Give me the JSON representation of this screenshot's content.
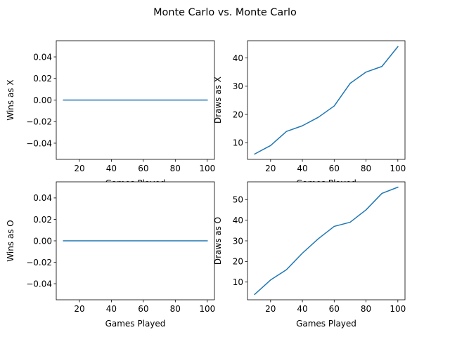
{
  "figure": {
    "title": "Monte Carlo vs. Monte Carlo"
  },
  "chart_data": [
    {
      "type": "line",
      "xlabel": "Games Played",
      "ylabel": "Wins as X",
      "xlim": [
        5.5,
        104.5
      ],
      "ylim": [
        -0.055,
        0.055
      ],
      "xticks": [
        20,
        40,
        60,
        80,
        100
      ],
      "yticks": [
        -0.04,
        -0.02,
        0.0,
        0.02,
        0.04
      ],
      "ytick_labels": [
        "−0.04",
        "−0.02",
        "0.00",
        "0.02",
        "0.04"
      ],
      "x": [
        10,
        20,
        30,
        40,
        50,
        60,
        70,
        80,
        90,
        100
      ],
      "y": [
        0,
        0,
        0,
        0,
        0,
        0,
        0,
        0,
        0,
        0
      ],
      "color": "#1f77b4"
    },
    {
      "type": "line",
      "xlabel": "Games Played",
      "ylabel": "Draws as X",
      "xlim": [
        5.5,
        104.5
      ],
      "ylim": [
        4.1,
        46.1
      ],
      "xticks": [
        20,
        40,
        60,
        80,
        100
      ],
      "yticks": [
        10,
        20,
        30,
        40
      ],
      "ytick_labels": [
        "10",
        "20",
        "30",
        "40"
      ],
      "x": [
        10,
        20,
        30,
        40,
        50,
        60,
        70,
        80,
        90,
        100
      ],
      "y": [
        6,
        9,
        14,
        16,
        19,
        23,
        31,
        35,
        37,
        44
      ],
      "color": "#1f77b4"
    },
    {
      "type": "line",
      "xlabel": "Games Played",
      "ylabel": "Wins as O",
      "xlim": [
        5.5,
        104.5
      ],
      "ylim": [
        -0.055,
        0.055
      ],
      "xticks": [
        20,
        40,
        60,
        80,
        100
      ],
      "yticks": [
        -0.04,
        -0.02,
        0.0,
        0.02,
        0.04
      ],
      "ytick_labels": [
        "−0.04",
        "−0.02",
        "0.00",
        "0.02",
        "0.04"
      ],
      "x": [
        10,
        20,
        30,
        40,
        50,
        60,
        70,
        80,
        90,
        100
      ],
      "y": [
        0,
        0,
        0,
        0,
        0,
        0,
        0,
        0,
        0,
        0
      ],
      "color": "#1f77b4"
    },
    {
      "type": "line",
      "xlabel": "Games Played",
      "ylabel": "Draws as O",
      "xlim": [
        5.5,
        104.5
      ],
      "ylim": [
        1.4,
        58.6
      ],
      "xticks": [
        20,
        40,
        60,
        80,
        100
      ],
      "yticks": [
        10,
        20,
        30,
        40,
        50
      ],
      "ytick_labels": [
        "10",
        "20",
        "30",
        "40",
        "50"
      ],
      "x": [
        10,
        20,
        30,
        40,
        50,
        60,
        70,
        80,
        90,
        100
      ],
      "y": [
        4,
        11,
        16,
        24,
        31,
        37,
        39,
        45,
        53,
        56
      ],
      "color": "#1f77b4"
    }
  ]
}
